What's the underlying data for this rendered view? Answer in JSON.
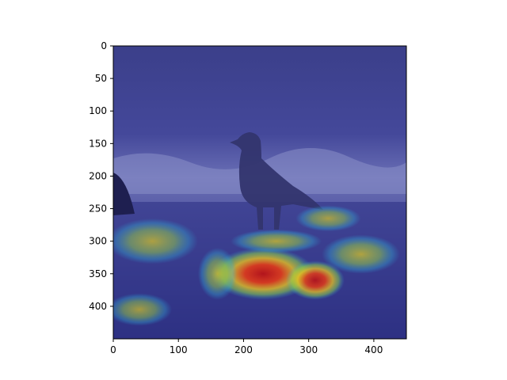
{
  "chart_data": {
    "type": "heatmap",
    "title": "",
    "xlabel": "",
    "ylabel": "",
    "xlim": [
      0,
      450
    ],
    "ylim": [
      450,
      0
    ],
    "y_inverted": true,
    "grid": false,
    "legend": "none",
    "colormap": "jet",
    "x_ticks": [
      0,
      100,
      200,
      300,
      400
    ],
    "y_ticks": [
      0,
      50,
      100,
      150,
      200,
      250,
      300,
      350,
      400
    ],
    "background_image": "seagull on beach with ocean waves",
    "hotspots": [
      {
        "x": 230,
        "y": 350,
        "intensity": 1.0,
        "rx": 80,
        "ry": 40
      },
      {
        "x": 310,
        "y": 360,
        "intensity": 0.9,
        "rx": 45,
        "ry": 30
      },
      {
        "x": 160,
        "y": 350,
        "intensity": 0.55,
        "rx": 30,
        "ry": 40
      },
      {
        "x": 380,
        "y": 320,
        "intensity": 0.6,
        "rx": 60,
        "ry": 30
      },
      {
        "x": 60,
        "y": 300,
        "intensity": 0.55,
        "rx": 70,
        "ry": 35
      },
      {
        "x": 40,
        "y": 405,
        "intensity": 0.5,
        "rx": 50,
        "ry": 25
      },
      {
        "x": 330,
        "y": 265,
        "intensity": 0.5,
        "rx": 50,
        "ry": 20
      },
      {
        "x": 250,
        "y": 300,
        "intensity": 0.6,
        "rx": 70,
        "ry": 18
      }
    ]
  }
}
